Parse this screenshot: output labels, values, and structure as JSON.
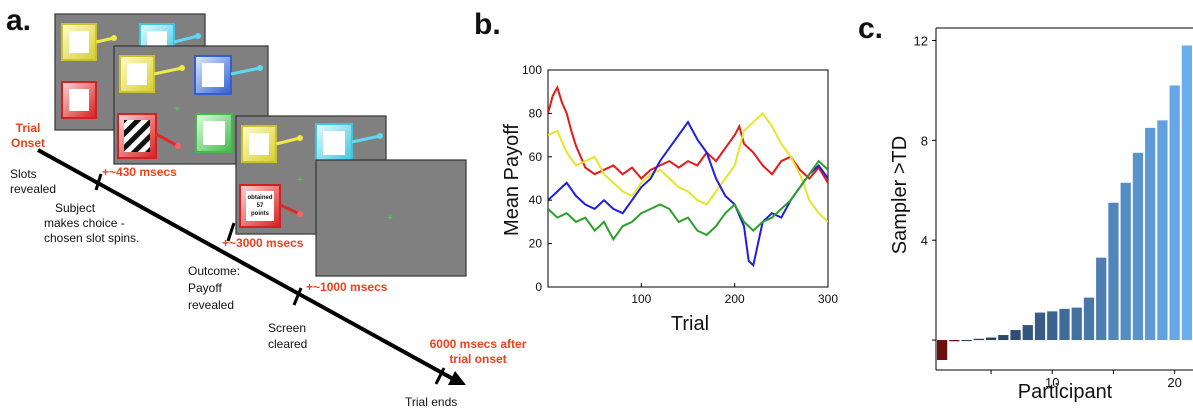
{
  "panel_a": {
    "label": "a.",
    "trial_onset": [
      "Trial",
      "Onset"
    ],
    "steps": [
      {
        "text": [
          "Slots",
          "revealed"
        ]
      },
      {
        "text": [
          "Subject",
          "makes choice -",
          "chosen slot spins."
        ]
      },
      {
        "text": [
          "Outcome:",
          "Payoff",
          "revealed"
        ]
      },
      {
        "text": [
          "Screen",
          "cleared"
        ]
      },
      {
        "text": [
          "Trial ends"
        ]
      }
    ],
    "timings": [
      "+~430 msecs",
      "+~3000 msecs",
      "+~1000 msecs"
    ],
    "end_note": [
      "6000 msecs after",
      "trial onset"
    ],
    "outcome_card": [
      "obtained",
      "57",
      "points"
    ],
    "colors": {
      "orange": "#e8421e",
      "screen_gray": "#808080",
      "yellow": "#e8e04a",
      "cyan": "#4fd0e8",
      "red": "#e02a2a",
      "green": "#58c25a",
      "blue": "#3a6fd8"
    }
  },
  "panel_b": {
    "label": "b.",
    "chart_data": {
      "type": "line",
      "xlabel": "Trial",
      "ylabel": "Mean Payoff",
      "xlim": [
        0,
        300
      ],
      "ylim": [
        0,
        100
      ],
      "xticks": [
        100,
        200,
        300
      ],
      "yticks": [
        0,
        20,
        40,
        60,
        80,
        100
      ],
      "grid": false,
      "series": [
        {
          "color": "#e41a1c",
          "points": [
            [
              0,
              80
            ],
            [
              5,
              88
            ],
            [
              10,
              92
            ],
            [
              15,
              85
            ],
            [
              20,
              80
            ],
            [
              25,
              72
            ],
            [
              30,
              65
            ],
            [
              35,
              60
            ],
            [
              40,
              55
            ],
            [
              50,
              52
            ],
            [
              60,
              54
            ],
            [
              70,
              56
            ],
            [
              80,
              52
            ],
            [
              90,
              55
            ],
            [
              100,
              50
            ],
            [
              110,
              54
            ],
            [
              120,
              56
            ],
            [
              130,
              58
            ],
            [
              140,
              55
            ],
            [
              150,
              58
            ],
            [
              160,
              56
            ],
            [
              170,
              62
            ],
            [
              180,
              58
            ],
            [
              190,
              64
            ],
            [
              200,
              70
            ],
            [
              205,
              74
            ],
            [
              210,
              66
            ],
            [
              220,
              62
            ],
            [
              230,
              56
            ],
            [
              240,
              52
            ],
            [
              250,
              58
            ],
            [
              260,
              60
            ],
            [
              270,
              54
            ],
            [
              280,
              50
            ],
            [
              290,
              55
            ],
            [
              300,
              48
            ]
          ]
        },
        {
          "color": "#e5e52c",
          "points": [
            [
              0,
              70
            ],
            [
              10,
              72
            ],
            [
              20,
              62
            ],
            [
              30,
              56
            ],
            [
              40,
              58
            ],
            [
              50,
              60
            ],
            [
              60,
              52
            ],
            [
              70,
              48
            ],
            [
              80,
              44
            ],
            [
              90,
              42
            ],
            [
              100,
              48
            ],
            [
              110,
              52
            ],
            [
              120,
              54
            ],
            [
              130,
              50
            ],
            [
              140,
              46
            ],
            [
              150,
              44
            ],
            [
              160,
              40
            ],
            [
              170,
              38
            ],
            [
              180,
              44
            ],
            [
              190,
              50
            ],
            [
              200,
              56
            ],
            [
              210,
              72
            ],
            [
              220,
              76
            ],
            [
              230,
              80
            ],
            [
              240,
              74
            ],
            [
              250,
              66
            ],
            [
              260,
              60
            ],
            [
              270,
              52
            ],
            [
              280,
              40
            ],
            [
              290,
              34
            ],
            [
              300,
              30
            ]
          ]
        },
        {
          "color": "#1f1fe0",
          "points": [
            [
              0,
              40
            ],
            [
              10,
              44
            ],
            [
              20,
              48
            ],
            [
              30,
              42
            ],
            [
              40,
              38
            ],
            [
              50,
              36
            ],
            [
              60,
              40
            ],
            [
              70,
              36
            ],
            [
              80,
              34
            ],
            [
              90,
              40
            ],
            [
              100,
              46
            ],
            [
              110,
              50
            ],
            [
              120,
              58
            ],
            [
              130,
              64
            ],
            [
              140,
              70
            ],
            [
              150,
              76
            ],
            [
              160,
              68
            ],
            [
              170,
              62
            ],
            [
              180,
              50
            ],
            [
              190,
              42
            ],
            [
              200,
              38
            ],
            [
              210,
              28
            ],
            [
              215,
              12
            ],
            [
              220,
              10
            ],
            [
              230,
              30
            ],
            [
              240,
              34
            ],
            [
              250,
              32
            ],
            [
              260,
              40
            ],
            [
              270,
              46
            ],
            [
              280,
              52
            ],
            [
              290,
              56
            ],
            [
              300,
              50
            ]
          ]
        },
        {
          "color": "#2aa02a",
          "points": [
            [
              0,
              36
            ],
            [
              10,
              32
            ],
            [
              20,
              34
            ],
            [
              30,
              30
            ],
            [
              40,
              32
            ],
            [
              50,
              26
            ],
            [
              60,
              30
            ],
            [
              70,
              22
            ],
            [
              80,
              28
            ],
            [
              90,
              30
            ],
            [
              100,
              34
            ],
            [
              110,
              36
            ],
            [
              120,
              38
            ],
            [
              130,
              36
            ],
            [
              140,
              30
            ],
            [
              150,
              32
            ],
            [
              160,
              26
            ],
            [
              170,
              24
            ],
            [
              180,
              28
            ],
            [
              190,
              34
            ],
            [
              200,
              38
            ],
            [
              210,
              30
            ],
            [
              220,
              26
            ],
            [
              230,
              30
            ],
            [
              240,
              32
            ],
            [
              250,
              36
            ],
            [
              260,
              40
            ],
            [
              270,
              46
            ],
            [
              280,
              52
            ],
            [
              290,
              58
            ],
            [
              300,
              54
            ]
          ]
        }
      ]
    }
  },
  "panel_c": {
    "label": "c.",
    "chart_data": {
      "type": "bar",
      "xlabel": "Participant",
      "ylabel": "Sampler >TD",
      "ylim": [
        -1.2,
        12.5
      ],
      "yticks": [
        4,
        8,
        12
      ],
      "xticks": [
        10,
        20
      ],
      "categories": [
        1,
        2,
        3,
        4,
        5,
        6,
        7,
        8,
        9,
        10,
        11,
        12,
        13,
        14,
        15,
        16,
        17,
        18,
        19,
        20,
        21
      ],
      "values": [
        -0.8,
        -0.05,
        0.0,
        0.05,
        0.1,
        0.2,
        0.4,
        0.6,
        1.1,
        1.15,
        1.25,
        1.3,
        1.7,
        3.3,
        5.5,
        6.3,
        7.5,
        8.5,
        8.8,
        10.2,
        11.8
      ],
      "colors": {
        "negative": "#6b0f0f",
        "low": "#1f3350",
        "high": "#6aaef0"
      }
    }
  }
}
